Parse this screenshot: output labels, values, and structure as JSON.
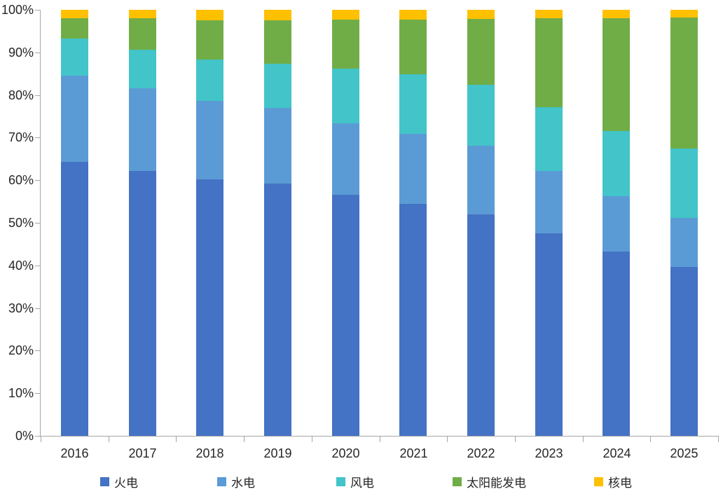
{
  "chart_data": {
    "type": "bar",
    "variant": "stacked-percent",
    "title": "",
    "xlabel": "",
    "ylabel": "",
    "grid": false,
    "legend_position": "bottom",
    "ylim": [
      0,
      100
    ],
    "y_tick_labels": [
      "0%",
      "10%",
      "20%",
      "30%",
      "40%",
      "50%",
      "60%",
      "70%",
      "80%",
      "90%",
      "100%"
    ],
    "categories": [
      "2016",
      "2017",
      "2018",
      "2019",
      "2020",
      "2021",
      "2022",
      "2023",
      "2024",
      "2025"
    ],
    "series": [
      {
        "name": "火电",
        "key": "thermal",
        "color": "#4472C4",
        "values": [
          64.3,
          62.2,
          60.2,
          59.2,
          56.6,
          54.5,
          52.0,
          47.6,
          43.2,
          39.6
        ]
      },
      {
        "name": "水电",
        "key": "hydro",
        "color": "#5B9BD5",
        "values": [
          20.2,
          19.3,
          18.5,
          17.7,
          16.8,
          16.4,
          16.1,
          14.5,
          13.0,
          11.5
        ]
      },
      {
        "name": "风电",
        "key": "wind",
        "color": "#42C4C9",
        "values": [
          8.8,
          9.2,
          9.7,
          10.4,
          12.8,
          13.9,
          14.3,
          15.0,
          15.3,
          16.4
        ]
      },
      {
        "name": "太阳能发电",
        "key": "solar",
        "color": "#70AD47",
        "values": [
          4.7,
          7.3,
          9.2,
          10.2,
          11.5,
          12.9,
          15.4,
          21.0,
          26.6,
          30.7
        ]
      },
      {
        "name": "核电",
        "key": "nuclear",
        "color": "#FFC000",
        "values": [
          2.0,
          2.0,
          2.4,
          2.5,
          2.3,
          2.3,
          2.2,
          1.9,
          1.9,
          1.8
        ]
      }
    ],
    "axis_color": "#a6a6a6",
    "label_color": "#262626",
    "legend_x_positions": [
      143,
      310,
      480,
      646,
      848
    ]
  }
}
